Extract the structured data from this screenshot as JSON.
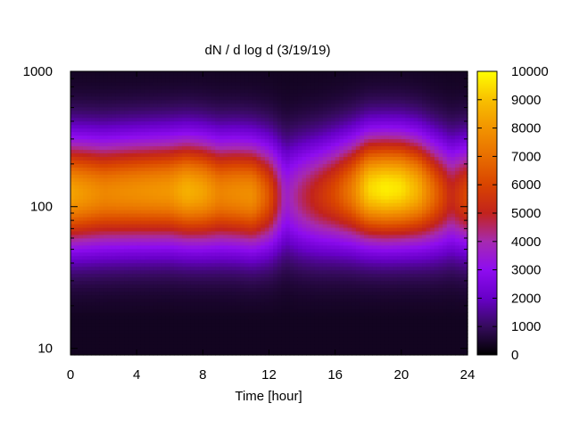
{
  "chart_data": {
    "type": "heatmap",
    "title": "dN / d log d (3/19/19)",
    "xlabel": "Time [hour]",
    "ylabel": "",
    "x_range": [
      0,
      24
    ],
    "x_ticks": [
      0,
      4,
      8,
      12,
      16,
      20,
      24
    ],
    "y_scale": "log",
    "y_range": [
      9,
      900
    ],
    "y_ticks": [
      10,
      100,
      1000
    ],
    "colorbar": {
      "palette": "black-purple-red-orange-yellow",
      "range": [
        0,
        10000
      ],
      "ticks": [
        0,
        1000,
        2000,
        3000,
        4000,
        5000,
        6000,
        7000,
        8000,
        9000,
        10000
      ]
    },
    "grid": false,
    "profile": {
      "time_hour": [
        0,
        2,
        4,
        6,
        7,
        8,
        9,
        10,
        11,
        12,
        13,
        14,
        15,
        16,
        17,
        18,
        19,
        20,
        21,
        22,
        23,
        24
      ],
      "peak_value": [
        8000,
        7300,
        7500,
        7700,
        8300,
        8000,
        7200,
        7400,
        7500,
        6000,
        3200,
        4200,
        5000,
        5800,
        7000,
        9000,
        9400,
        9200,
        8300,
        6500,
        4800,
        5800
      ],
      "peak_diameter": [
        125,
        125,
        128,
        130,
        130,
        128,
        125,
        125,
        122,
        120,
        118,
        118,
        120,
        125,
        130,
        135,
        135,
        135,
        132,
        125,
        120,
        120
      ]
    }
  }
}
